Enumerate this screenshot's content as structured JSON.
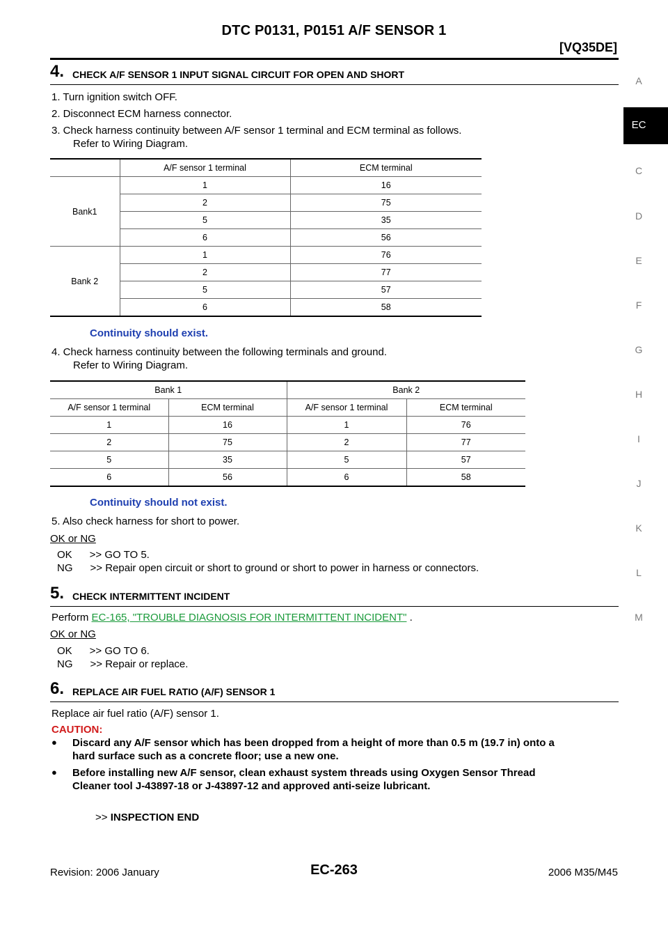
{
  "header": {
    "title": "DTC P0131, P0151 A/F SENSOR 1",
    "engine": "[VQ35DE]"
  },
  "side_index": {
    "letters": [
      "A",
      "EC",
      "C",
      "D",
      "E",
      "F",
      "G",
      "H",
      "I",
      "J",
      "K",
      "L",
      "M"
    ],
    "active": "EC"
  },
  "step4": {
    "num": "4.",
    "title": "CHECK A/F SENSOR 1 INPUT SIGNAL CIRCUIT FOR OPEN AND SHORT",
    "items": [
      "1.  Turn ignition switch OFF.",
      "2.  Disconnect ECM harness connector.",
      "3.  Check harness continuity between A/F sensor 1 terminal and ECM terminal as follows.",
      "Refer to Wiring Diagram.",
      "Continuity should exist.",
      "4.  Check harness continuity between the following terminals and ground.",
      "Refer to Wiring Diagram.",
      "Continuity should not exist.",
      "5.  Also check harness for short to power."
    ],
    "table1": {
      "headers": [
        "A/F sensor 1 terminal",
        "ECM terminal"
      ],
      "groups": [
        {
          "label": "Bank1",
          "rows": [
            [
              "1",
              "16"
            ],
            [
              "2",
              "75"
            ],
            [
              "5",
              "35"
            ],
            [
              "6",
              "56"
            ]
          ]
        },
        {
          "label": "Bank 2",
          "rows": [
            [
              "1",
              "76"
            ],
            [
              "2",
              "77"
            ],
            [
              "5",
              "57"
            ],
            [
              "6",
              "58"
            ]
          ]
        }
      ]
    },
    "table2": {
      "groups": [
        "Bank 1",
        "Bank 2"
      ],
      "headers": [
        "A/F sensor 1 terminal",
        "ECM terminal",
        "A/F sensor 1 terminal",
        "ECM terminal"
      ],
      "rows": [
        [
          "1",
          "16",
          "1",
          "76"
        ],
        [
          "2",
          "75",
          "2",
          "77"
        ],
        [
          "5",
          "35",
          "5",
          "57"
        ],
        [
          "6",
          "56",
          "6",
          "58"
        ]
      ]
    },
    "ok_ng": "OK or NG",
    "ok": "OK      >> GO TO 5.",
    "ng": "NG      >> Repair open circuit or short to ground or short to power in harness or connectors."
  },
  "step5": {
    "num": "5.",
    "title": "CHECK INTERMITTENT INCIDENT",
    "perform": "Perform",
    "link": "EC-165, \"TROUBLE DIAGNOSIS FOR INTERMITTENT INCIDENT\"",
    "after": " .",
    "ok_ng": "OK or NG",
    "ok": "OK      >> GO TO 6.",
    "ng": "NG      >> Repair or replace."
  },
  "step6": {
    "num": "6.",
    "title": "REPLACE AIR FUEL RATIO (A/F) SENSOR 1",
    "text": "Replace air fuel ratio (A/F) sensor 1.",
    "caution": "CAUTION:",
    "bullets": [
      [
        "Discard any A/F sensor which has been dropped from a height of more than 0.5 m (19.7 in) onto a",
        "hard surface such as a concrete floor; use a new one."
      ],
      [
        "Before installing new A/F sensor, clean exhaust system threads using Oxygen Sensor Thread",
        "Cleaner tool J-43897-18 or J-43897-12 and approved anti-seize lubricant."
      ]
    ],
    "end_prefix": ">>",
    "end": "INSPECTION END"
  },
  "footer": {
    "revision": "Revision: 2006 January",
    "page": "EC-263",
    "model": "2006 M35/M45"
  }
}
